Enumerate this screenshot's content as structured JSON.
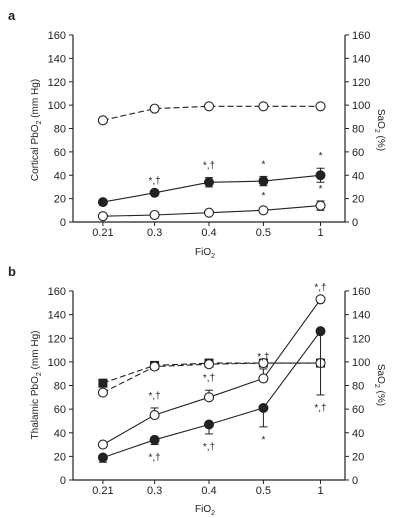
{
  "chart_data": [
    {
      "type": "line",
      "panel_label": "a",
      "categories": [
        "0.21",
        "0.3",
        "0.4",
        "0.5",
        "1"
      ],
      "xlabel_main": "FiO",
      "xlabel_sub": "2",
      "ylabel_left": "Cortical PbO",
      "ylabel_left_sub": "2",
      "ylabel_left_unit": " (mm Hg)",
      "ylabel_right": "SaO",
      "ylabel_right_sub": "2",
      "ylabel_right_unit": " (%)",
      "ylim": [
        0,
        160
      ],
      "yticks": [
        "0",
        "20",
        "40",
        "60",
        "80",
        "100",
        "120",
        "140",
        "160"
      ],
      "series": [
        {
          "marker": "open-circle",
          "line": "dashed",
          "axis": "right",
          "values": [
            87,
            97,
            99,
            99,
            99
          ],
          "errors": [
            0,
            0,
            0,
            0,
            0
          ]
        },
        {
          "marker": "filled-circle",
          "line": "solid",
          "axis": "left",
          "values": [
            17,
            25,
            34,
            35,
            40
          ],
          "errors": [
            0,
            0,
            4,
            4,
            6
          ],
          "annotations_above": [
            "",
            "*,†",
            "*,†",
            "*",
            "*"
          ]
        },
        {
          "marker": "open-circle",
          "line": "solid",
          "axis": "left",
          "values": [
            5,
            6,
            8,
            10,
            14
          ],
          "errors": [
            0,
            0,
            0,
            2,
            4
          ],
          "annotations_above": [
            "",
            "",
            "",
            "*",
            "*"
          ]
        }
      ]
    },
    {
      "type": "line",
      "panel_label": "b",
      "categories": [
        "0.21",
        "0.3",
        "0.4",
        "0.5",
        "1"
      ],
      "xlabel_main": "FiO",
      "xlabel_sub": "2",
      "ylabel_left": "Thalamic PbO",
      "ylabel_left_sub": "2",
      "ylabel_left_unit": " (mm Hg)",
      "ylabel_right": "SaO",
      "ylabel_right_sub": "2",
      "ylabel_right_unit": " (%)",
      "ylim": [
        0,
        160
      ],
      "yticks": [
        "0",
        "20",
        "40",
        "60",
        "80",
        "100",
        "120",
        "140",
        "160"
      ],
      "series": [
        {
          "marker": "filled-square",
          "line": "dashed",
          "axis": "right",
          "values": [
            82,
            97,
            99,
            99,
            99
          ],
          "errors": [
            0,
            0,
            0,
            0,
            0
          ]
        },
        {
          "marker": "open-circle",
          "line": "dashed",
          "axis": "right",
          "values": [
            74,
            96,
            98,
            99,
            99
          ],
          "errors": [
            0,
            0,
            0,
            0,
            0
          ]
        },
        {
          "marker": "open-circle",
          "line": "solid",
          "axis": "left",
          "values": [
            30,
            55,
            70,
            86,
            153
          ],
          "errors": [
            0,
            6,
            6,
            8,
            0
          ],
          "error_direction": "up",
          "annotations_above": [
            "",
            "*,†",
            "*,†",
            "*,†",
            "*,†"
          ]
        },
        {
          "marker": "filled-circle",
          "line": "solid",
          "axis": "left",
          "values": [
            19,
            34,
            47,
            61,
            126
          ],
          "errors": [
            4,
            4,
            8,
            16,
            54
          ],
          "error_direction": "down",
          "annotations_below": [
            "",
            "*,†",
            "*,†",
            "*",
            "*,†"
          ]
        }
      ]
    }
  ]
}
